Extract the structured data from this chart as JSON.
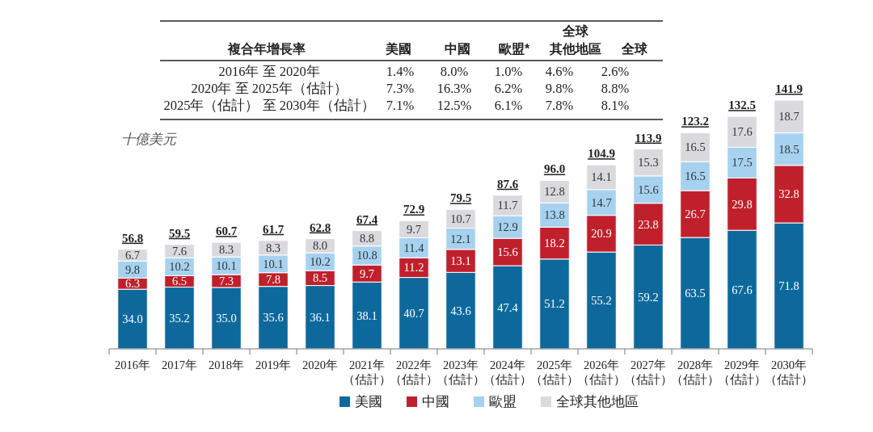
{
  "chart_data": {
    "type": "bar",
    "stacked": true,
    "ylabel": "十億美元",
    "legend": "bottom",
    "categories": [
      "2016年",
      "2017年",
      "2018年",
      "2019年",
      "2020年",
      "2021年（估計）",
      "2022年（估計）",
      "2023年（估計）",
      "2024年（估計）",
      "2025年（估計）",
      "2026年（估計）",
      "2027年（估計）",
      "2028年（估計）",
      "2029年（估計）",
      "2030年（估計）"
    ],
    "series": [
      {
        "name": "美國",
        "color": "#0d699c",
        "values": [
          34.0,
          35.2,
          35.0,
          35.6,
          36.1,
          38.1,
          40.7,
          43.6,
          47.4,
          51.2,
          55.2,
          59.2,
          63.5,
          67.6,
          71.8
        ],
        "value_labels": [
          "34.0",
          "35.2",
          "35.0",
          "35.6",
          "36.1",
          "38.1",
          "40.7",
          "43.6",
          "47.4",
          "51.2",
          "55.2",
          "59.2",
          "63.5",
          "67.6",
          "71.8"
        ]
      },
      {
        "name": "中國",
        "color": "#c0202c",
        "values": [
          6.3,
          6.5,
          7.3,
          7.8,
          8.5,
          9.7,
          11.2,
          13.1,
          15.6,
          18.2,
          20.9,
          23.8,
          26.7,
          29.8,
          32.8
        ],
        "value_labels": [
          "6.3",
          "6.5",
          "7.3",
          "7.8",
          "8.5",
          "9.7",
          "11.2",
          "13.1",
          "15.6",
          "18.2",
          "20.9",
          "23.8",
          "26.7",
          "29.8",
          "32.8"
        ]
      },
      {
        "name": "歐盟",
        "color": "#a6d2f0",
        "values": [
          9.8,
          10.2,
          10.1,
          10.1,
          10.2,
          10.8,
          11.4,
          12.1,
          12.9,
          13.8,
          14.7,
          15.6,
          16.5,
          17.5,
          18.5
        ],
        "value_labels": [
          "9.8",
          "10.2",
          "10.1",
          "10.1",
          "10.2",
          "10.8",
          "11.4",
          "12.1",
          "12.9",
          "13.8",
          "14.7",
          "15.6",
          "16.5",
          "17.5",
          "18.5"
        ]
      },
      {
        "name": "全球其他地區",
        "color": "#d9d9de",
        "values": [
          6.7,
          7.6,
          8.3,
          8.3,
          8.0,
          8.8,
          9.7,
          10.7,
          11.7,
          12.8,
          14.1,
          15.3,
          16.5,
          17.6,
          18.7
        ],
        "value_labels": [
          "6.7",
          "7.6",
          "8.3",
          "8.3",
          "8.0",
          "8.8",
          "9.7",
          "10.7",
          "11.7",
          "12.8",
          "14.1",
          "15.3",
          "16.5",
          "17.6",
          "18.7"
        ]
      }
    ],
    "totals": [
      "56.8",
      "59.5",
      "60.7",
      "61.7",
      "62.8",
      "67.4",
      "72.9",
      "79.5",
      "87.6",
      "96.0",
      "104.9",
      "113.9",
      "123.2",
      "132.5",
      "141.9"
    ],
    "annotations": [
      "複合年增長率",
      "美國",
      "中國",
      "歐盟*",
      "全球其他地區",
      "全球",
      "2016年 至 2020年",
      "1.4%",
      "8.0%",
      "1.0%",
      "4.6%",
      "2.6%",
      "2020年 至 2025年（估計）",
      "7.3%",
      "16.3%",
      "6.2%",
      "9.8%",
      "8.8%",
      "2025年（估計） 至 2030年（估計）",
      "7.1%",
      "12.5%",
      "6.1%",
      "7.8%",
      "8.1%"
    ]
  }
}
